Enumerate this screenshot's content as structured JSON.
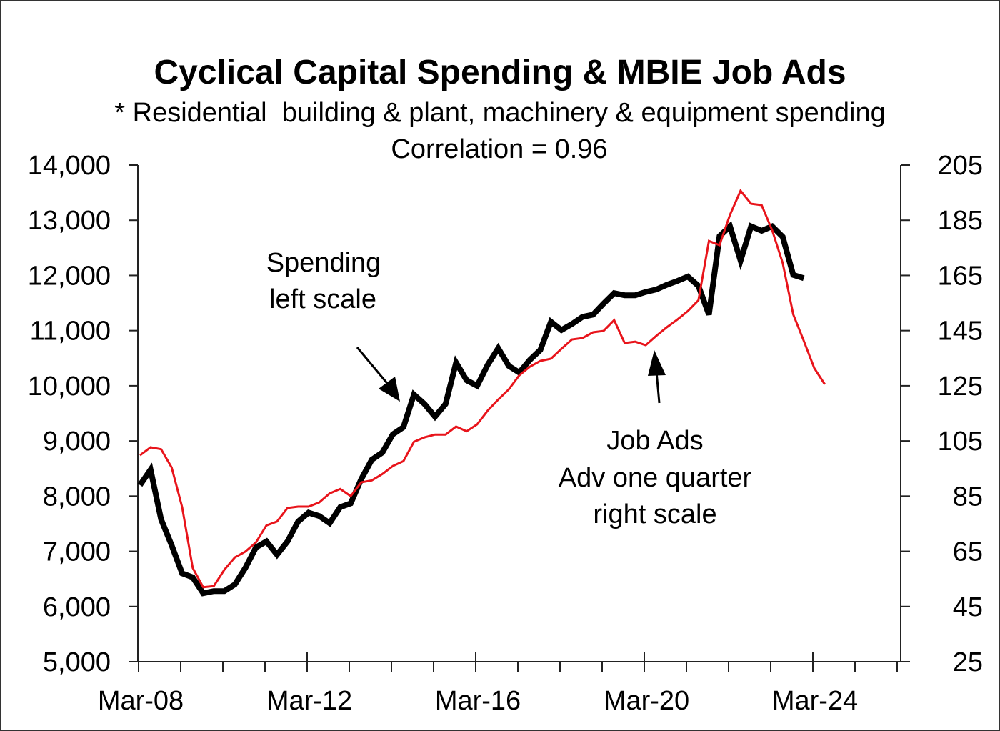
{
  "chart_data": {
    "type": "line",
    "title": "Cyclical Capital Spending & MBIE Job Ads",
    "subtitle": "* Residential  building & plant, machinery & equipment spending",
    "annotation_correlation": "Correlation = 0.96",
    "xlabel": "",
    "ylabel_left": "",
    "ylabel_right": "",
    "x_frequency": "quarterly",
    "x_start": "Mar-08",
    "x_tick_labels": [
      "Mar-08",
      "Mar-12",
      "Mar-16",
      "Mar-20",
      "Mar-24"
    ],
    "x_range_years": [
      2008,
      2026
    ],
    "ylim_left": [
      5000,
      14000
    ],
    "yticks_left": [
      "5,000",
      "6,000",
      "7,000",
      "8,000",
      "9,000",
      "10,000",
      "11,000",
      "12,000",
      "13,000",
      "14,000"
    ],
    "ylim_right": [
      25,
      205
    ],
    "yticks_right": [
      "25",
      "45",
      "65",
      "85",
      "105",
      "125",
      "145",
      "165",
      "185",
      "205"
    ],
    "grid": false,
    "series": [
      {
        "name": "Spending",
        "axis": "left",
        "color": "#000000",
        "values": [
          8200,
          8480,
          7580,
          7110,
          6600,
          6530,
          6240,
          6280,
          6280,
          6400,
          6700,
          7070,
          7180,
          6940,
          7180,
          7540,
          7700,
          7640,
          7510,
          7800,
          7870,
          8310,
          8660,
          8790,
          9120,
          9250,
          9840,
          9670,
          9440,
          9670,
          10420,
          10100,
          10000,
          10380,
          10680,
          10360,
          10240,
          10470,
          10650,
          11160,
          11010,
          11120,
          11250,
          11290,
          11490,
          11680,
          11640,
          11640,
          11700,
          11745,
          11830,
          11900,
          11980,
          11810,
          11290,
          12710,
          12890,
          12270,
          12890,
          12810,
          12890,
          12700,
          12010,
          11950
        ]
      },
      {
        "name": "Job Ads (advanced one quarter)",
        "axis": "right",
        "color": "#e8141b",
        "values": [
          99.8,
          102.7,
          102,
          95.4,
          81,
          59,
          52,
          52.4,
          58.3,
          62.8,
          64.9,
          68.2,
          74.4,
          75.8,
          80.7,
          81.2,
          81.2,
          82.7,
          86,
          87.6,
          85,
          90,
          90.7,
          93,
          95.9,
          97.7,
          104.7,
          106.3,
          107.3,
          107.3,
          110.2,
          108.5,
          111,
          116,
          120,
          123.7,
          128.8,
          131.9,
          134,
          134.8,
          138.4,
          141.8,
          142.3,
          144.4,
          144.9,
          148.8,
          140.5,
          141,
          139.7,
          143.1,
          146.2,
          149,
          152.1,
          156,
          177.5,
          176,
          187,
          195.7,
          191,
          190.5,
          181.4,
          169.5,
          150.9,
          141.3,
          131.4,
          125.5
        ]
      }
    ],
    "annotations": [
      {
        "id": "spending",
        "lines": [
          "Spending",
          "left scale"
        ],
        "arrow_points_to": "Spending"
      },
      {
        "id": "jobads",
        "lines": [
          "Job Ads",
          "Adv one quarter",
          "right scale"
        ],
        "arrow_points_to": "Job Ads"
      }
    ]
  }
}
